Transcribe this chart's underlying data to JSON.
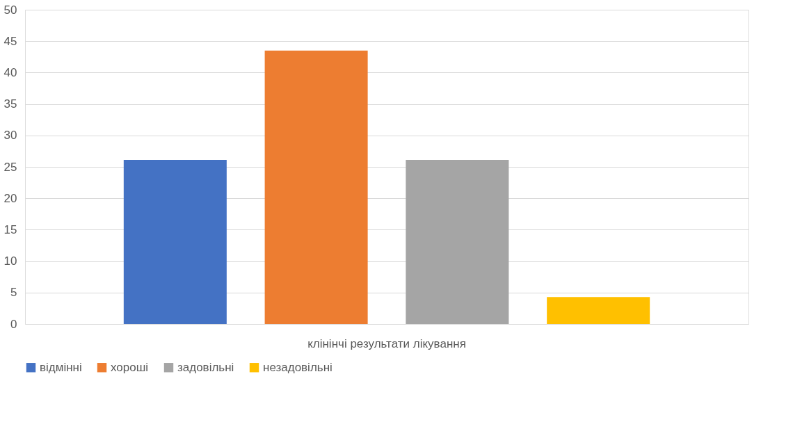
{
  "chart_data": {
    "type": "bar",
    "categories": [
      "клінінчі результати лікування"
    ],
    "series": [
      {
        "name": "відмінні",
        "color": "#4472c4",
        "values": [
          26.1
        ]
      },
      {
        "name": "хороші",
        "color": "#ed7d31",
        "values": [
          43.5
        ]
      },
      {
        "name": "задовільні",
        "color": "#a5a5a5",
        "values": [
          26.1
        ]
      },
      {
        "name": "незадовільні",
        "color": "#ffc000",
        "values": [
          4.3
        ]
      }
    ],
    "ylim": [
      0,
      50
    ],
    "yticks": [
      0,
      5,
      10,
      15,
      20,
      25,
      30,
      35,
      40,
      45,
      50
    ],
    "grid": "y",
    "legend": "bottom"
  }
}
